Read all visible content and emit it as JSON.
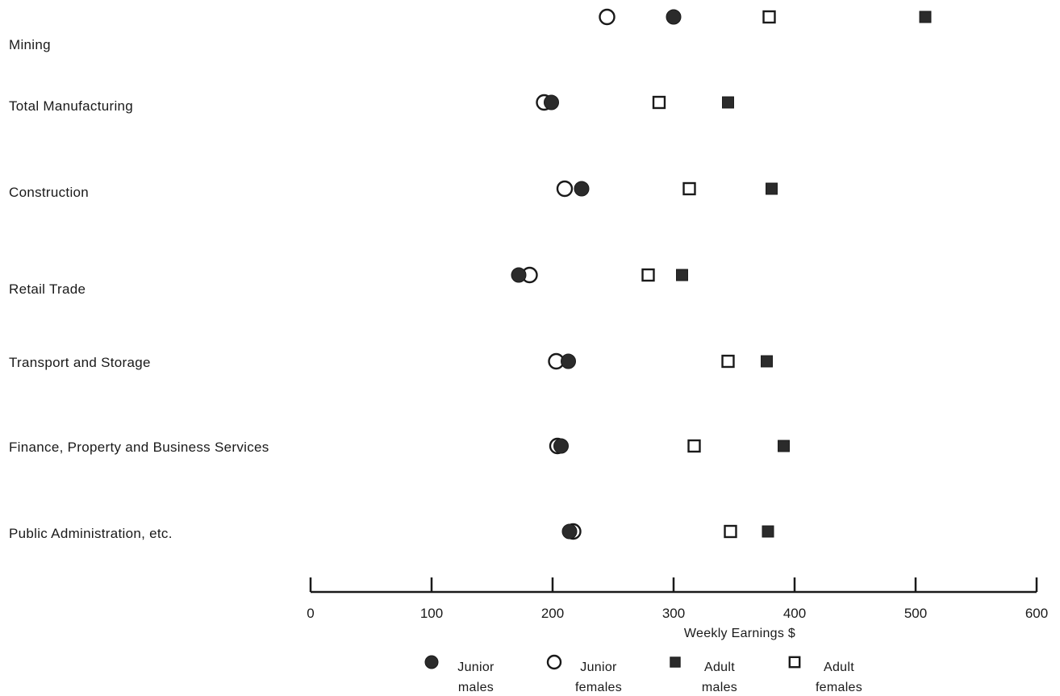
{
  "chart_data": {
    "type": "scatter",
    "title": "",
    "xlabel": "Weekly Earnings $",
    "ylabel": "",
    "xlim": [
      0,
      600
    ],
    "xticks": [
      0,
      100,
      200,
      300,
      400,
      500,
      600
    ],
    "grid": false,
    "legend_position": "bottom-center",
    "categories": [
      "Mining",
      "Total Manufacturing",
      "Construction",
      "Retail Trade",
      "Transport and Storage",
      "Finance, Property and Business Services",
      "Public Administration, etc."
    ],
    "series": [
      {
        "name": "Junior males",
        "label_lines": [
          "Junior",
          "males"
        ],
        "marker": "filled-circle",
        "values": [
          300,
          199,
          224,
          172,
          213,
          207,
          214
        ]
      },
      {
        "name": "Junior females",
        "label_lines": [
          "Junior",
          "females"
        ],
        "marker": "open-circle",
        "values": [
          245,
          193,
          210,
          181,
          203,
          204,
          217
        ]
      },
      {
        "name": "Adult males",
        "label_lines": [
          "Adult",
          "males"
        ],
        "marker": "filled-square",
        "values": [
          508,
          345,
          381,
          307,
          377,
          391,
          378
        ]
      },
      {
        "name": "Adult females",
        "label_lines": [
          "Adult",
          "females"
        ],
        "marker": "open-square",
        "values": [
          379,
          288,
          313,
          279,
          345,
          317,
          347
        ]
      }
    ],
    "colors": {
      "ink": "#1a1a1a",
      "marker_fill": "#2b2b2b",
      "background": "#ffffff"
    }
  }
}
